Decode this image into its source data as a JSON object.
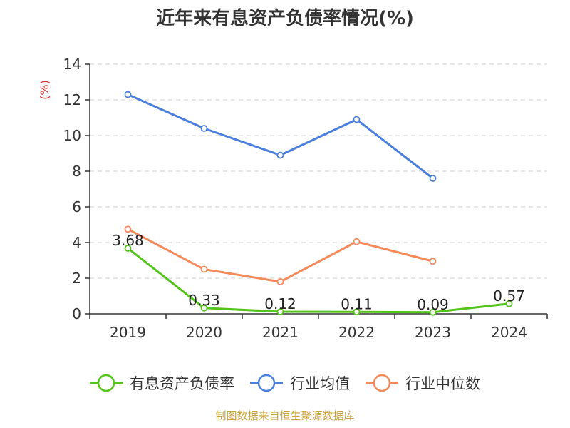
{
  "chart_data": {
    "type": "line",
    "title": "近年来有息资产负债率情况(%)",
    "ylabel": "(%)",
    "xlabel": "",
    "ylim": [
      0,
      14
    ],
    "yticks": [
      0,
      2,
      4,
      6,
      8,
      10,
      12,
      14
    ],
    "categories": [
      "2019",
      "2020",
      "2021",
      "2022",
      "2023",
      "2024"
    ],
    "grid": true,
    "legend_position": "bottom",
    "series": [
      {
        "name": "有息资产负债率",
        "color": "#52c41a",
        "values": [
          3.68,
          0.33,
          0.12,
          0.11,
          0.09,
          0.57
        ],
        "labels": [
          "3.68",
          "0.33",
          "0.12",
          "0.11",
          "0.09",
          "0.57"
        ]
      },
      {
        "name": "行业均值",
        "color": "#4a7fdc",
        "values": [
          12.3,
          10.4,
          8.9,
          10.9,
          7.6,
          null
        ]
      },
      {
        "name": "行业中位数",
        "color": "#f48a5a",
        "values": [
          4.75,
          2.5,
          1.8,
          4.05,
          2.95,
          null
        ]
      }
    ]
  },
  "source": "制图数据来自恒生聚源数据库"
}
